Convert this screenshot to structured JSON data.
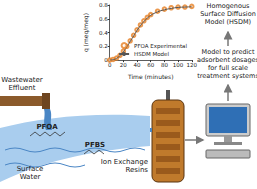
{
  "chart_data": {
    "type": "line",
    "x": [
      0,
      5,
      10,
      15,
      20,
      25,
      30,
      35,
      40,
      45,
      50,
      55,
      60,
      70,
      80,
      90,
      100,
      110,
      120
    ],
    "series": [
      {
        "name": "PFOA Experimental",
        "type": "scatter",
        "marker": "circle",
        "color": "#e67e22",
        "values": [
          0,
          0.01,
          0.03,
          0.07,
          0.13,
          0.2,
          0.28,
          0.36,
          0.44,
          0.51,
          0.57,
          0.62,
          0.66,
          0.71,
          0.74,
          0.76,
          0.77,
          0.77,
          0.78
        ]
      },
      {
        "name": "HSDM Model",
        "type": "line",
        "line_style": "solid",
        "color": "#555555",
        "values": [
          0,
          0.005,
          0.025,
          0.065,
          0.12,
          0.19,
          0.27,
          0.35,
          0.43,
          0.5,
          0.56,
          0.61,
          0.65,
          0.7,
          0.73,
          0.75,
          0.765,
          0.77,
          0.775
        ]
      }
    ],
    "x_label": "Time (minutes)",
    "y_label": "q (meq/meq)",
    "xlim": [
      0,
      120
    ],
    "xticks": [
      0,
      20,
      40,
      60,
      80,
      100,
      120
    ],
    "ylim": [
      0,
      0.8
    ],
    "yticks": [
      0,
      0.2,
      0.4,
      0.6,
      0.8
    ],
    "legend": "lower right",
    "grid": false
  },
  "diagram": {
    "labels": {
      "source": [
        "Wastewater",
        "Effluent"
      ],
      "water": [
        "Surface",
        "Water"
      ],
      "compounds": [
        "PFOA",
        "PFBS"
      ],
      "column": [
        "Ion Exchange",
        "Resins"
      ],
      "model": [
        "Homogenous",
        "Surface Diffusion",
        "Model (HSDM)"
      ],
      "output": [
        "Model to predict",
        "adsorbent dosages",
        "for full scale",
        "treatment systems"
      ]
    }
  }
}
